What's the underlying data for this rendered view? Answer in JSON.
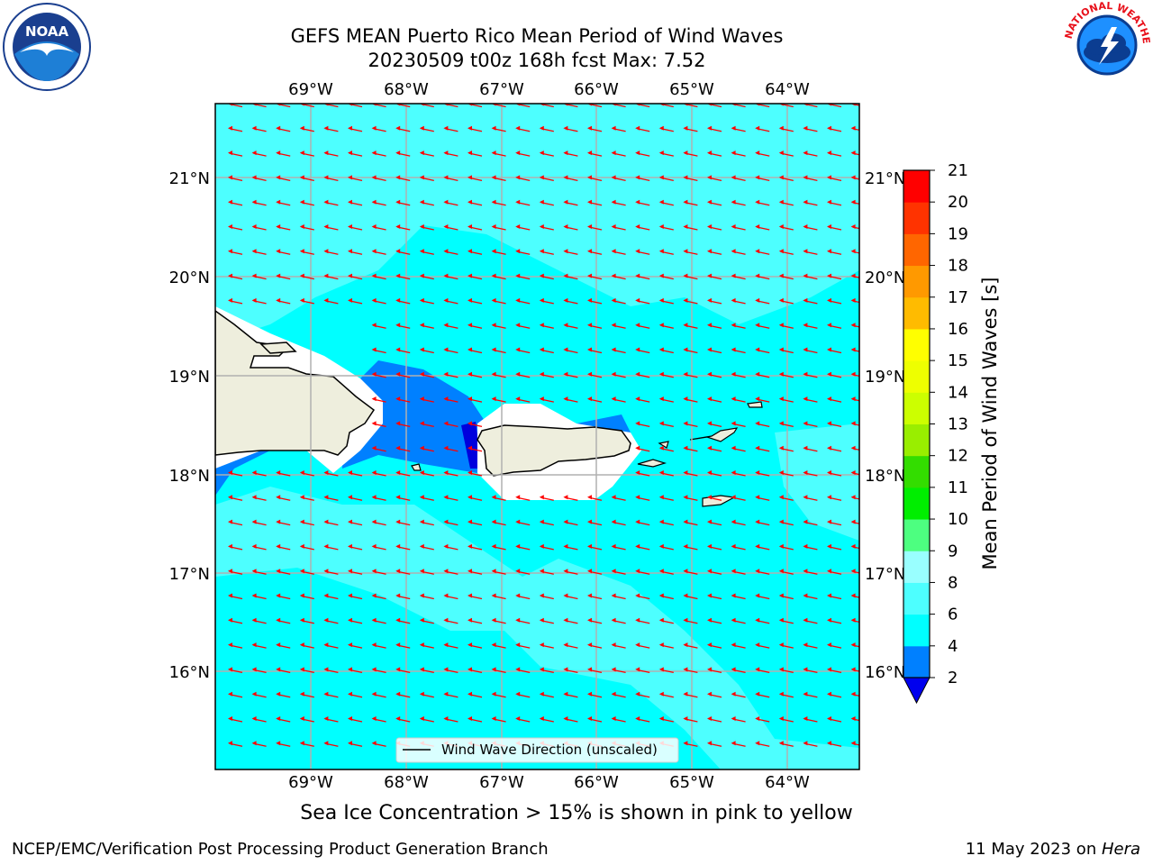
{
  "header": {
    "title_line1": "GEFS MEAN Puerto Rico Mean Period of Wind Waves",
    "title_line2": "20230509 t00z 168h fcst   Max: 7.52"
  },
  "map": {
    "lon_labels": [
      "69°W",
      "68°W",
      "67°W",
      "66°W",
      "65°W",
      "64°W"
    ],
    "lat_labels": [
      "21°N",
      "20°N",
      "19°N",
      "18°N",
      "17°N",
      "16°N"
    ],
    "legend_label": "Wind Wave Direction (unscaled)",
    "colors": {
      "ocean_light": "#00ffff",
      "ocean_mid": "#4dffff",
      "ocean_blue": "#0080ff",
      "ocean_dark": "#0000dd",
      "land": "#eeeedd",
      "arrow": "#ff0000",
      "gridline": "#b0b0b0"
    }
  },
  "colorbar": {
    "title": "Mean Period of Wind Waves [s]",
    "ticks": [
      "2",
      "4",
      "6",
      "8",
      "9",
      "10",
      "11",
      "12",
      "13",
      "14",
      "15",
      "16",
      "17",
      "18",
      "19",
      "20",
      "21"
    ],
    "colors": [
      "#0000ee",
      "#0080ff",
      "#00ffff",
      "#4dffff",
      "#99ffff",
      "#4dff80",
      "#00ee00",
      "#33dd00",
      "#99ee00",
      "#ccff00",
      "#eeff00",
      "#ffff00",
      "#ffbb00",
      "#ff9900",
      "#ff6600",
      "#ff3300",
      "#ff0000"
    ]
  },
  "subtitle": "Sea Ice Concentration > 15% is shown in pink to yellow",
  "footer": {
    "left": "NCEP/EMC/Verification Post Processing Product Generation Branch",
    "right_date": "11 May 2023 on ",
    "right_machine": "Hera"
  },
  "logos": {
    "left_text": "NOAA",
    "left_ring": "NATIONAL OCEANIC AND ATMOSPHERIC ADMINISTRATION · U.S. DEPARTMENT OF COMMERCE",
    "right_ring": "NATIONAL WEATHER SERVICE"
  }
}
